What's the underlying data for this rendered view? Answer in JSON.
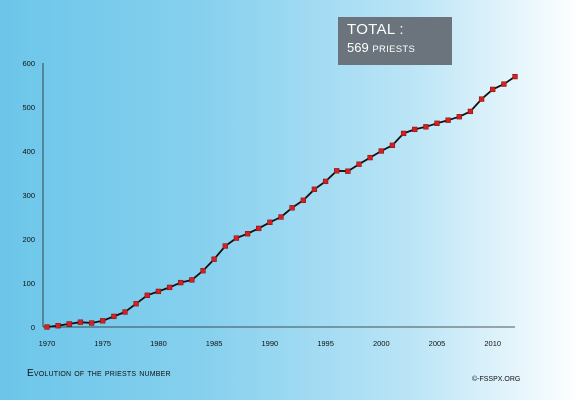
{
  "total_box": {
    "title": "TOTAL :",
    "value": "569",
    "unit": "PRIESTS"
  },
  "footer": {
    "title": "Evolution of the priests number",
    "credit": "©-FSSPX.ORG"
  },
  "colors": {
    "line": "#111111",
    "marker": "#d42020",
    "marker_stroke": "#7a1010",
    "box": "#6b747c"
  },
  "chart_data": {
    "type": "line",
    "title": "Evolution of the priests number",
    "xlabel": "",
    "ylabel": "",
    "xlim": [
      1970,
      2012
    ],
    "ylim": [
      0,
      600
    ],
    "x_ticks": [
      1970,
      1975,
      1980,
      1985,
      1990,
      1995,
      2000,
      2005,
      2010
    ],
    "y_ticks": [
      0,
      100,
      200,
      300,
      400,
      500,
      600
    ],
    "grid": false,
    "legend": "none",
    "series": [
      {
        "x": [
          1970,
          1971,
          1972,
          1973,
          1974,
          1975,
          1976,
          1977,
          1978,
          1979,
          1980,
          1981,
          1982,
          1983,
          1984,
          1985,
          1986,
          1987,
          1988,
          1989,
          1990,
          1991,
          1992,
          1993,
          1994,
          1995,
          1996,
          1997,
          1998,
          1999,
          2000,
          2001,
          2002,
          2003,
          2004,
          2005,
          2006,
          2007,
          2008,
          2009,
          2010,
          2011,
          2012
        ],
        "y": [
          0,
          3,
          7,
          11,
          9,
          14,
          24,
          34,
          53,
          72,
          81,
          90,
          101,
          107,
          128,
          154,
          184,
          202,
          212,
          224,
          238,
          250,
          271,
          288,
          313,
          331,
          355,
          354,
          370,
          385,
          400,
          413,
          440,
          449,
          455,
          463,
          470,
          478,
          490,
          518,
          540,
          552,
          569
        ]
      }
    ]
  }
}
